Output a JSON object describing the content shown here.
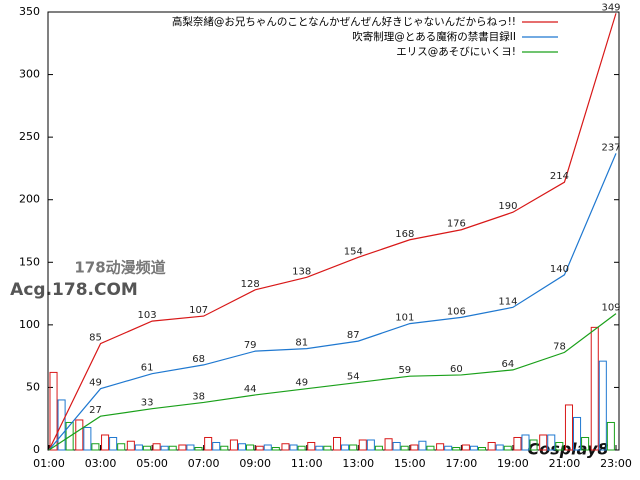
{
  "chart_data": [
    {
      "type": "line",
      "x": [
        1,
        3,
        5,
        7,
        9,
        11,
        13,
        15,
        17,
        19,
        21,
        23
      ],
      "series": [
        {
          "name": "高梨奈緒@お兄ちゃんのことなんかぜんぜん好きじゃないんだからねっ!!",
          "color": "#d81818",
          "values": [
            0,
            85,
            103,
            107,
            128,
            138,
            154,
            168,
            176,
            190,
            214,
            349
          ]
        },
        {
          "name": "吹寄制理@とある魔術の禁書目録II",
          "color": "#1f78d0",
          "values": [
            0,
            49,
            61,
            68,
            79,
            81,
            87,
            101,
            106,
            114,
            140,
            237
          ]
        },
        {
          "name": "エリス@あそびにいくヨ!",
          "color": "#1aa01a",
          "values": [
            0,
            27,
            33,
            38,
            44,
            49,
            54,
            59,
            60,
            64,
            78,
            109
          ]
        }
      ],
      "xlim": [
        1,
        23
      ],
      "xticks": [
        {
          "value": 1,
          "label": "01:00"
        },
        {
          "value": 3,
          "label": "03:00"
        },
        {
          "value": 5,
          "label": "05:00"
        },
        {
          "value": 7,
          "label": "07:00"
        },
        {
          "value": 9,
          "label": "09:00"
        },
        {
          "value": 11,
          "label": "11:00"
        },
        {
          "value": 13,
          "label": "13:00"
        },
        {
          "value": 15,
          "label": "15:00"
        },
        {
          "value": 17,
          "label": "17:00"
        },
        {
          "value": 19,
          "label": "19:00"
        },
        {
          "value": 21,
          "label": "21:00"
        },
        {
          "value": 23,
          "label": "23:00"
        }
      ],
      "ylim": [
        0,
        350
      ],
      "yticks": [
        0,
        50,
        100,
        150,
        200,
        250,
        300,
        350
      ],
      "legend": "top-right"
    },
    {
      "type": "bar",
      "x": [
        1,
        2,
        3,
        4,
        5,
        6,
        7,
        8,
        9,
        10,
        11,
        12,
        13,
        14,
        15,
        16,
        17,
        18,
        19,
        20,
        21,
        22
      ],
      "series": [
        {
          "color": "#d81818",
          "values": [
            62,
            24,
            12,
            7,
            5,
            4,
            10,
            8,
            3,
            5,
            6,
            10,
            8,
            9,
            4,
            5,
            4,
            6,
            10,
            12,
            36,
            98
          ]
        },
        {
          "color": "#1f78d0",
          "values": [
            40,
            18,
            10,
            4,
            3,
            4,
            6,
            5,
            4,
            4,
            3,
            4,
            8,
            6,
            7,
            3,
            3,
            4,
            12,
            12,
            26,
            71
          ]
        },
        {
          "color": "#1aa01a",
          "values": [
            22,
            5,
            5,
            3,
            3,
            2,
            3,
            4,
            2,
            3,
            3,
            4,
            3,
            3,
            3,
            2,
            2,
            3,
            8,
            6,
            10,
            22
          ]
        }
      ],
      "xlim": [
        1,
        23
      ],
      "ylim": [
        0,
        350
      ]
    }
  ],
  "watermarks": [
    "178动漫频道",
    "Acg.178.COM",
    "Cosplay8"
  ]
}
